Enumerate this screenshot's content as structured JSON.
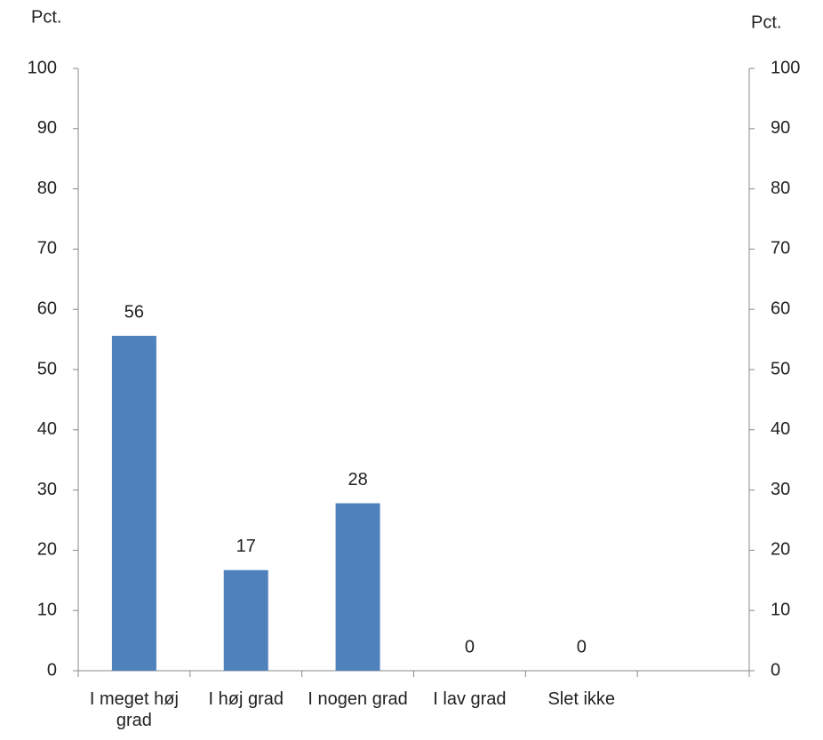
{
  "chart_data": {
    "type": "bar",
    "ylabel": "Pct.",
    "y2label": "Pct.",
    "categories": [
      "I meget høj grad",
      "I høj grad",
      "I nogen grad",
      "I lav grad",
      "Slet ikke",
      null
    ],
    "values": [
      55.6,
      16.7,
      27.8,
      0,
      0,
      null
    ],
    "value_labels": [
      "56",
      "17",
      "28",
      "0",
      "0",
      null
    ],
    "color": "#4f81bd",
    "ylim": [
      0,
      100
    ],
    "yticks": [
      0,
      10,
      20,
      30,
      40,
      50,
      60,
      70,
      80,
      90,
      100
    ],
    "y2lim": [
      0,
      100
    ],
    "y2ticks": [
      0,
      10,
      20,
      30,
      40,
      50,
      60,
      70,
      80,
      90,
      100
    ],
    "grid": false
  }
}
